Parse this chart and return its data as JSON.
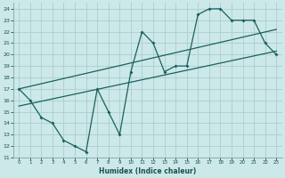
{
  "xlabel": "Humidex (Indice chaleur)",
  "bg_color": "#cce8e8",
  "grid_color": "#aacece",
  "line_color": "#1a6060",
  "xlim": [
    -0.5,
    23.5
  ],
  "ylim": [
    11,
    24.5
  ],
  "xticks": [
    0,
    1,
    2,
    3,
    4,
    5,
    6,
    7,
    8,
    9,
    10,
    11,
    12,
    13,
    14,
    15,
    16,
    17,
    18,
    19,
    20,
    21,
    22,
    23
  ],
  "yticks": [
    11,
    12,
    13,
    14,
    15,
    16,
    17,
    18,
    19,
    20,
    21,
    22,
    23,
    24
  ],
  "line1_x": [
    0,
    1,
    2,
    3,
    4,
    5,
    6,
    7,
    8,
    9,
    10,
    11,
    12,
    13,
    14,
    15,
    16,
    17,
    18,
    19,
    20,
    21,
    22,
    23
  ],
  "line1_y": [
    17,
    16,
    14.5,
    14,
    12.5,
    12,
    11.5,
    17,
    15,
    13,
    18.5,
    22,
    21,
    18.5,
    19,
    19,
    23.5,
    24,
    24,
    23,
    23,
    23,
    21,
    20
  ],
  "line2_x": [
    0,
    23
  ],
  "line2_y": [
    15.5,
    20.3
  ],
  "line3_x": [
    0,
    23
  ],
  "line3_y": [
    17.0,
    22.2
  ]
}
